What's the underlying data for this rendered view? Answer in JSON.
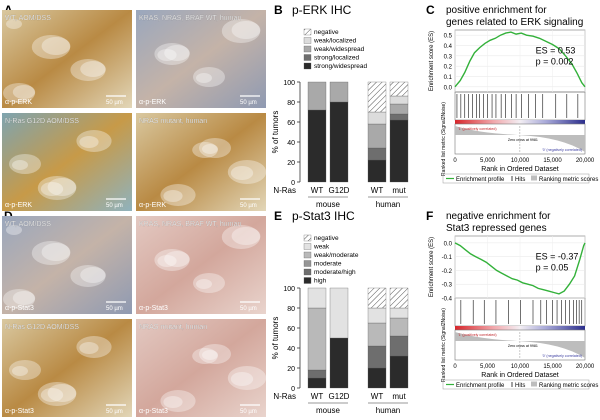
{
  "panels": {
    "A": {
      "letter": "A",
      "images": [
        {
          "caption": "WT, AOM/DSS",
          "stain": "α-p-ERK",
          "scale": "50 µm",
          "tone": "brown"
        },
        {
          "caption": "KRAS, NRAS, BRAF WT, human",
          "stain": "α-p-ERK",
          "scale": "50 µm",
          "tone": "bluegray"
        },
        {
          "caption": "N-Ras G12D AOM/DSS",
          "stain": "α-p-ERK",
          "scale": "50 µm",
          "tone": "mixed"
        },
        {
          "caption": "NRAS mutant, human",
          "stain": "α-p-ERK",
          "scale": "50 µm",
          "tone": "brown"
        }
      ]
    },
    "D": {
      "letter": "D",
      "images": [
        {
          "caption": "WT, AOM/DSS",
          "stain": "α-p-Stat3",
          "scale": "50 µm",
          "tone": "bluegray"
        },
        {
          "caption": "KRAS, NRAS, BRAF WT, human",
          "stain": "α-p-Stat3",
          "scale": "50 µm",
          "tone": "pink"
        },
        {
          "caption": "N-Ras G12D AOM/DSS",
          "stain": "α-p-Stat3",
          "scale": "50 µm",
          "tone": "brown"
        },
        {
          "caption": "NRAS mutant, human",
          "stain": "α-p-Stat3",
          "scale": "50 µm",
          "tone": "pink"
        }
      ]
    },
    "B": {
      "letter": "B",
      "title": "p-ERK IHC",
      "row_label": "N-Ras",
      "groups": [
        "mouse",
        "human"
      ]
    },
    "E": {
      "letter": "E",
      "title": "p-Stat3 IHC",
      "row_label": "N-Ras",
      "groups": [
        "mouse",
        "human"
      ]
    },
    "C": {
      "letter": "C",
      "title_line1": "positive enrichment for",
      "title_line2": "genes related to ERK signaling",
      "es_text": "ES = 0.53",
      "p_text": "p = 0.002",
      "pos_label": "'1' (positively correlated)",
      "neg_label": "'0' (negatively correlated)",
      "zero_cross": "Zero cross at 9981",
      "legend": [
        "Enrichment profile",
        "Hits",
        "Ranking metric scores"
      ]
    },
    "F": {
      "letter": "F",
      "title_line1": "negative enrichment for",
      "title_line2": "Stat3 repressed genes",
      "es_text": "ES = -0.37",
      "p_text": "p = 0.05",
      "pos_label": "'1' (positively correlated)",
      "neg_label": "'0' (negatively correlated)",
      "zero_cross": "Zero cross at 9981",
      "legend": [
        "Enrichment profile",
        "Hits",
        "Ranking metric scores"
      ]
    }
  },
  "chart_data": [
    {
      "id": "B",
      "type": "bar",
      "stacked": true,
      "title": "p-ERK IHC",
      "ylabel": "% of tumors",
      "ylim": [
        0,
        100
      ],
      "yticks": [
        0,
        20,
        40,
        60,
        80,
        100
      ],
      "categories": [
        "WT",
        "G12D",
        "WT",
        "mut"
      ],
      "legend": [
        "negative",
        "weak/localized",
        "weak/widespread",
        "strong/localized",
        "strong/widespread"
      ],
      "legend_placement": "top-right",
      "series": [
        {
          "name": "strong/widespread",
          "color": "#2b2b2b",
          "values": [
            72,
            80,
            22,
            62
          ]
        },
        {
          "name": "strong/localized",
          "color": "#6e6e6e",
          "values": [
            0,
            0,
            12,
            6
          ]
        },
        {
          "name": "weak/widespread",
          "color": "#a9a9a9",
          "values": [
            28,
            20,
            24,
            10
          ]
        },
        {
          "name": "weak/localized",
          "color": "#dcdcdc",
          "values": [
            0,
            0,
            12,
            8
          ]
        },
        {
          "name": "negative",
          "color": "hatch",
          "values": [
            0,
            0,
            30,
            14
          ]
        }
      ]
    },
    {
      "id": "E",
      "type": "bar",
      "stacked": true,
      "title": "p-Stat3 IHC",
      "ylabel": "% of tumors",
      "ylim": [
        0,
        100
      ],
      "yticks": [
        0,
        20,
        40,
        60,
        80,
        100
      ],
      "categories": [
        "WT",
        "G12D",
        "WT",
        "mut"
      ],
      "legend": [
        "negative",
        "weak",
        "weak/moderate",
        "moderate",
        "moderate/high",
        "high"
      ],
      "legend_placement": "top-right",
      "series": [
        {
          "name": "high",
          "color": "#2b2b2b",
          "values": [
            10,
            50,
            20,
            32
          ]
        },
        {
          "name": "moderate/high",
          "color": "#6e6e6e",
          "values": [
            8,
            0,
            22,
            20
          ]
        },
        {
          "name": "moderate",
          "color": "#959595",
          "values": [
            0,
            0,
            0,
            0
          ]
        },
        {
          "name": "weak/moderate",
          "color": "#b9b9b9",
          "values": [
            62,
            0,
            23,
            18
          ]
        },
        {
          "name": "weak",
          "color": "#e2e2e2",
          "values": [
            20,
            50,
            15,
            10
          ]
        },
        {
          "name": "negative",
          "color": "hatch",
          "values": [
            0,
            0,
            20,
            20
          ]
        }
      ]
    },
    {
      "id": "C",
      "type": "line",
      "title": "positive enrichment for genes related to ERK signaling",
      "ylabel": "Enrichment score (ES)",
      "ylabel2": "Ranked list metric (Signal2Noise)",
      "xlabel": "Rank in Ordered Dataset",
      "ylim": [
        -0.05,
        0.55
      ],
      "yticks": [
        0.0,
        0.1,
        0.2,
        0.3,
        0.4,
        0.5
      ],
      "xlim": [
        0,
        20000
      ],
      "xticks": [
        0,
        5000,
        10000,
        15000,
        20000
      ],
      "xtick_labels": [
        "0",
        "5,000",
        "10,000",
        "15,000",
        "20,000"
      ],
      "x": [
        0,
        800,
        1500,
        2300,
        3000,
        3800,
        4600,
        5400,
        6200,
        7000,
        7800,
        8600,
        9400,
        10200,
        11000,
        12000,
        13000,
        14000,
        15000,
        16000,
        17000,
        18000,
        18800,
        19500,
        20000
      ],
      "values": [
        0.0,
        0.06,
        0.14,
        0.25,
        0.33,
        0.38,
        0.42,
        0.45,
        0.47,
        0.5,
        0.52,
        0.53,
        0.51,
        0.52,
        0.5,
        0.49,
        0.47,
        0.44,
        0.41,
        0.37,
        0.3,
        0.22,
        0.13,
        0.04,
        0.0
      ],
      "es": 0.53,
      "p": 0.002,
      "hits": [
        300,
        900,
        1500,
        2100,
        2700,
        3300,
        3800,
        4400,
        5000,
        5700,
        6300,
        7100,
        7800,
        8700,
        9400,
        10200,
        11300,
        12400,
        13500,
        15500,
        17200,
        18900
      ]
    },
    {
      "id": "F",
      "type": "line",
      "title": "negative enrichment for Stat3 repressed genes",
      "ylabel": "Enrichment score (ES)",
      "ylabel2": "Ranked list metric (Signal2Noise)",
      "xlabel": "Rank in Ordered Dataset",
      "ylim": [
        -0.4,
        0.05
      ],
      "yticks": [
        0.0,
        -0.1,
        -0.2,
        -0.3,
        -0.4
      ],
      "xlim": [
        0,
        20000
      ],
      "xticks": [
        0,
        5000,
        10000,
        15000,
        20000
      ],
      "xtick_labels": [
        "0",
        "5,000",
        "10,000",
        "15,000",
        "20,000"
      ],
      "x": [
        0,
        800,
        1600,
        2400,
        3200,
        4000,
        4800,
        5600,
        6400,
        7200,
        8000,
        8800,
        9600,
        10400,
        11200,
        12000,
        12800,
        13600,
        14400,
        15200,
        16000,
        16800,
        17600,
        18400,
        19200,
        19800,
        20000
      ],
      "values": [
        0.0,
        -0.02,
        -0.05,
        -0.08,
        -0.1,
        -0.12,
        -0.14,
        -0.17,
        -0.2,
        -0.22,
        -0.24,
        -0.26,
        -0.27,
        -0.29,
        -0.3,
        -0.31,
        -0.33,
        -0.34,
        -0.35,
        -0.36,
        -0.37,
        -0.35,
        -0.3,
        -0.24,
        -0.12,
        -0.02,
        0.0
      ],
      "es": -0.37,
      "p": 0.05,
      "hits": [
        900,
        2800,
        4500,
        6300,
        8200,
        10100,
        12000,
        13200,
        14100,
        15000,
        15700,
        16400,
        17000,
        17600,
        18200,
        18700,
        19100,
        19500
      ]
    }
  ]
}
